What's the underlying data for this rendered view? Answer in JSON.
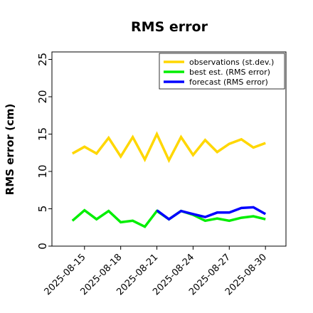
{
  "chart_data": {
    "type": "line",
    "title": "RMS error",
    "xlabel": "",
    "ylabel": "RMS error (cm)",
    "ylim": [
      0,
      26
    ],
    "yticks": [
      0,
      5,
      10,
      15,
      20,
      25
    ],
    "xtick_labels": [
      "2025-08-15",
      "2025-08-18",
      "2025-08-21",
      "2025-08-24",
      "2025-08-27",
      "2025-08-30"
    ],
    "xtick_days": [
      15,
      18,
      21,
      24,
      27,
      30
    ],
    "xlim_days": [
      12.3,
      31.7
    ],
    "highlight_tick": "2025-08-21",
    "highlight_color": "#228b22",
    "grid": false,
    "legend_position": "top-right",
    "series": [
      {
        "name": "observations (st.dev.)",
        "color": "#ffd700",
        "x_days": [
          14,
          15,
          16,
          17,
          18,
          19,
          20,
          21,
          22,
          23,
          24,
          25,
          26,
          27,
          28,
          29,
          30
        ],
        "values": [
          12.4,
          13.3,
          12.4,
          14.5,
          12.0,
          14.6,
          11.6,
          15.0,
          11.5,
          14.6,
          12.2,
          14.2,
          12.6,
          13.7,
          14.3,
          13.2,
          13.8
        ]
      },
      {
        "name": "best est. (RMS error)",
        "color": "#00ee00",
        "x_days": [
          14,
          15,
          16,
          17,
          18,
          19,
          20,
          21,
          22,
          23,
          24,
          25,
          26,
          27,
          28,
          29,
          30
        ],
        "values": [
          3.4,
          4.8,
          3.6,
          4.7,
          3.2,
          3.4,
          2.6,
          4.7,
          3.6,
          4.7,
          4.2,
          3.4,
          3.7,
          3.4,
          3.8,
          4.0,
          3.6
        ]
      },
      {
        "name": "forecast (RMS error)",
        "color": "#0000ff",
        "x_days": [
          21,
          22,
          23,
          24,
          25,
          26,
          27,
          28,
          29,
          30
        ],
        "values": [
          4.8,
          3.6,
          4.7,
          4.3,
          3.9,
          4.5,
          4.5,
          5.1,
          5.2,
          4.3
        ]
      }
    ]
  }
}
